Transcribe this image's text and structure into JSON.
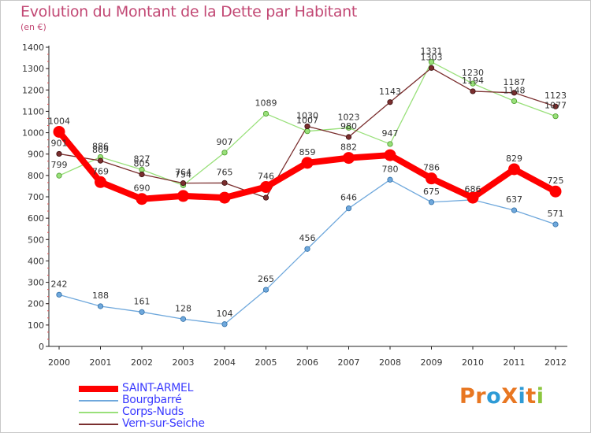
{
  "chart_data": {
    "type": "line",
    "title": "Evolution du Montant de la Dette par Habitant",
    "subtitle": "(en €)",
    "xlabel": "",
    "ylabel": "",
    "x": [
      "2000",
      "2001",
      "2002",
      "2003",
      "2004",
      "2005",
      "2006",
      "2007",
      "2008",
      "2009",
      "2010",
      "2011",
      "2012"
    ],
    "ylim": [
      0,
      1400
    ],
    "yticks": [
      0,
      100,
      200,
      300,
      400,
      500,
      600,
      700,
      800,
      900,
      1000,
      1100,
      1200,
      1300,
      1400
    ],
    "grid": false,
    "legend_position": "bottom-left",
    "series": [
      {
        "name": "SAINT-ARMEL",
        "color": "#ff0000",
        "values": [
          1004,
          769,
          690,
          704,
          696,
          746,
          859,
          882,
          895,
          786,
          696,
          829,
          725
        ]
      },
      {
        "name": "Bourgbarré",
        "color": "#6fa8dc",
        "values": [
          242,
          188,
          161,
          128,
          104,
          265,
          456,
          646,
          780,
          675,
          686,
          637,
          571
        ]
      },
      {
        "name": "Corps-Nuds",
        "color": "#99e07a",
        "values": [
          799,
          886,
          827,
          754,
          907,
          1089,
          1007,
          1023,
          947,
          1331,
          1230,
          1148,
          1077
        ]
      },
      {
        "name": "Vern-sur-Seiche",
        "color": "#7a2e2e",
        "values": [
          901,
          869,
          805,
          764,
          765,
          696,
          1030,
          980,
          1143,
          1303,
          1194,
          1187,
          1123
        ]
      }
    ],
    "labels": [
      [
        "1004",
        "769",
        "690",
        "",
        "",
        "746",
        "859",
        "882",
        "",
        "786",
        "",
        "829",
        "725"
      ],
      [
        "242",
        "188",
        "161",
        "128",
        "104",
        "265",
        "456",
        "646",
        "780",
        "675",
        "686",
        "637",
        "571"
      ],
      [
        "799",
        "886",
        "827",
        "754",
        "907",
        "1089",
        "1007",
        "1023",
        "947",
        "1331",
        "1230",
        "1148",
        "1077"
      ],
      [
        "901",
        "869",
        "805",
        "764",
        "765",
        "",
        "1030",
        "980",
        "1143",
        "1303",
        "1194",
        "1187",
        "1123"
      ]
    ]
  },
  "legend": {
    "items": [
      "SAINT-ARMEL",
      "Bourgbarré",
      "Corps-Nuds",
      "Vern-sur-Seiche"
    ]
  },
  "brand": {
    "text": "ProXiti",
    "colors": [
      "#e87722",
      "#e87722",
      "#2e9bd6",
      "#e87722",
      "#2e9bd6",
      "#e87722",
      "#8cc63e"
    ]
  }
}
